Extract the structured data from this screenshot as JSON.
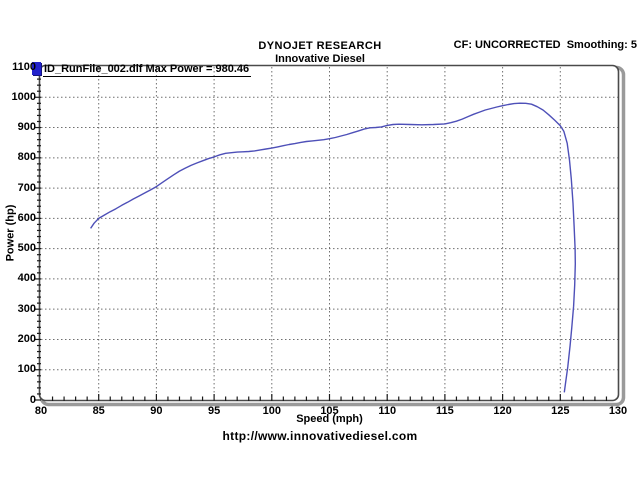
{
  "header": {
    "title": "DYNOJET RESEARCH",
    "subtitle": "Innovative Diesel",
    "cf_text": "CF: UNCORRECTED  Smoothing: 5"
  },
  "legend": {
    "label": "ID_RunFile_002.dlf Max Power = 980.46",
    "marker_color": "#2222cc"
  },
  "footer": {
    "url": "http://www.innovativediesel.com"
  },
  "colors": {
    "curve": "#4e50b8",
    "grid": "#6f6f6f",
    "axis": "#4a4a4a",
    "frame_shadow": "#9a9a9a",
    "tick": "#1a1a1a"
  },
  "chart_data": {
    "type": "line",
    "title": "DYNOJET RESEARCH — Innovative Diesel",
    "xlabel": "Speed (mph)",
    "ylabel": "Power (hp)",
    "xlim": [
      80,
      130
    ],
    "ylim": [
      0,
      1100
    ],
    "x_ticks": [
      80,
      85,
      90,
      95,
      100,
      105,
      110,
      115,
      120,
      125,
      130
    ],
    "y_ticks": [
      0,
      100,
      200,
      300,
      400,
      500,
      600,
      700,
      800,
      900,
      1000,
      1100
    ],
    "x_minor_step": 1,
    "y_minor_step": 20,
    "grid": true,
    "legend_position": "top-left",
    "series": [
      {
        "name": "ID_RunFile_002.dlf",
        "max_power": 980.46,
        "max_power_speed": 121.5,
        "color": "#4e50b8",
        "points": [
          [
            84.3,
            567
          ],
          [
            84.6,
            584
          ],
          [
            85,
            600
          ],
          [
            85.5,
            611
          ],
          [
            86,
            622
          ],
          [
            86.5,
            632
          ],
          [
            87,
            643
          ],
          [
            87.5,
            653
          ],
          [
            88,
            664
          ],
          [
            88.5,
            674
          ],
          [
            89,
            684
          ],
          [
            89.5,
            694
          ],
          [
            90,
            705
          ],
          [
            90.5,
            718
          ],
          [
            91,
            731
          ],
          [
            91.5,
            744
          ],
          [
            92,
            756
          ],
          [
            92.5,
            766
          ],
          [
            93,
            775
          ],
          [
            93.5,
            783
          ],
          [
            94,
            790
          ],
          [
            94.5,
            797
          ],
          [
            95,
            803
          ],
          [
            95.5,
            810
          ],
          [
            96,
            815
          ],
          [
            96.5,
            817
          ],
          [
            97,
            819
          ],
          [
            97.5,
            820
          ],
          [
            98,
            821
          ],
          [
            98.5,
            823
          ],
          [
            99,
            826
          ],
          [
            99.5,
            829
          ],
          [
            100,
            832
          ],
          [
            100.5,
            836
          ],
          [
            101,
            840
          ],
          [
            101.5,
            844
          ],
          [
            102,
            847
          ],
          [
            102.5,
            851
          ],
          [
            103,
            854
          ],
          [
            103.5,
            856
          ],
          [
            104,
            858
          ],
          [
            104.5,
            860
          ],
          [
            105,
            863
          ],
          [
            105.5,
            867
          ],
          [
            106,
            872
          ],
          [
            106.5,
            877
          ],
          [
            107,
            883
          ],
          [
            107.5,
            889
          ],
          [
            108,
            895
          ],
          [
            108.5,
            899
          ],
          [
            109,
            900
          ],
          [
            109.5,
            902
          ],
          [
            110,
            907
          ],
          [
            110.5,
            910
          ],
          [
            111,
            911
          ],
          [
            112,
            910
          ],
          [
            113,
            909
          ],
          [
            114,
            910
          ],
          [
            115,
            912
          ],
          [
            115.5,
            916
          ],
          [
            116,
            921
          ],
          [
            116.5,
            928
          ],
          [
            117,
            936
          ],
          [
            117.5,
            944
          ],
          [
            118,
            951
          ],
          [
            118.5,
            958
          ],
          [
            119,
            963
          ],
          [
            119.5,
            968
          ],
          [
            120,
            972
          ],
          [
            120.5,
            976
          ],
          [
            121,
            979
          ],
          [
            121.5,
            980.46
          ],
          [
            122,
            980
          ],
          [
            122.5,
            977
          ],
          [
            123,
            969
          ],
          [
            123.5,
            958
          ],
          [
            124,
            942
          ],
          [
            124.5,
            925
          ],
          [
            125,
            906
          ],
          [
            125.3,
            888
          ],
          [
            125.6,
            848
          ],
          [
            125.8,
            792
          ],
          [
            125.95,
            730
          ],
          [
            126.1,
            650
          ],
          [
            126.2,
            575
          ],
          [
            126.28,
            500
          ],
          [
            126.3,
            450
          ],
          [
            126.25,
            380
          ],
          [
            126.15,
            310
          ],
          [
            126.0,
            240
          ],
          [
            125.85,
            180
          ],
          [
            125.65,
            110
          ],
          [
            125.45,
            55
          ],
          [
            125.35,
            25
          ]
        ]
      }
    ]
  }
}
